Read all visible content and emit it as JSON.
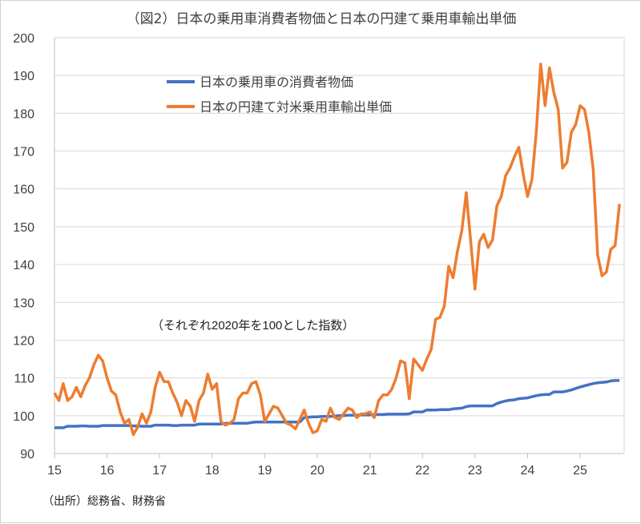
{
  "chart_data": {
    "type": "line",
    "title": "（図2）日本の乗用車消費者物価と日本の円建て乗用車輸出単価",
    "annotation": "（それぞれ2020年を100とした指数）",
    "source": "（出所）総務省、財務省",
    "xlabel": "",
    "ylabel": "",
    "ylim": [
      90,
      200
    ],
    "yticks": [
      90,
      100,
      110,
      120,
      130,
      140,
      150,
      160,
      170,
      180,
      190,
      200
    ],
    "xticks": [
      "15",
      "16",
      "17",
      "18",
      "19",
      "20",
      "21",
      "22",
      "23",
      "24",
      "25"
    ],
    "x_start": "2015-01",
    "x_end": "2025-10",
    "frequency": "monthly",
    "grid": true,
    "legend_placement": "top-left",
    "series": [
      {
        "name": "日本の乗用車の消費者物価",
        "color": "#4472C4",
        "values": [
          96.8,
          96.8,
          96.8,
          97.2,
          97.2,
          97.2,
          97.3,
          97.3,
          97.2,
          97.2,
          97.2,
          97.4,
          97.4,
          97.4,
          97.4,
          97.4,
          97.4,
          97.4,
          97.3,
          97.3,
          97.2,
          97.2,
          97.2,
          97.5,
          97.5,
          97.5,
          97.5,
          97.4,
          97.4,
          97.5,
          97.5,
          97.5,
          97.5,
          97.8,
          97.8,
          97.8,
          97.8,
          97.8,
          97.8,
          98.0,
          98.0,
          98.0,
          98.0,
          98.0,
          98.0,
          98.2,
          98.3,
          98.3,
          98.3,
          98.3,
          98.3,
          98.3,
          98.3,
          98.3,
          98.3,
          98.3,
          98.3,
          99.5,
          99.6,
          99.7,
          99.7,
          99.8,
          99.8,
          99.8,
          99.9,
          100.0,
          100.0,
          100.1,
          100.1,
          100.1,
          100.2,
          100.2,
          100.2,
          100.3,
          100.3,
          100.3,
          100.4,
          100.4,
          100.4,
          100.4,
          100.4,
          100.5,
          101.0,
          101.0,
          101.0,
          101.5,
          101.5,
          101.5,
          101.6,
          101.6,
          101.6,
          101.8,
          101.9,
          102.0,
          102.4,
          102.6,
          102.6,
          102.6,
          102.6,
          102.6,
          102.6,
          103.2,
          103.6,
          103.9,
          104.1,
          104.2,
          104.5,
          104.6,
          104.7,
          105.0,
          105.3,
          105.5,
          105.6,
          105.6,
          106.3,
          106.3,
          106.3,
          106.5,
          106.8,
          107.2,
          107.6,
          107.9,
          108.2,
          108.5,
          108.7,
          108.8,
          108.9,
          109.2,
          109.3,
          109.3
        ]
      },
      {
        "name": "日本の円建て対米乗用車輸出単価",
        "color": "#ED7D31",
        "values": [
          106,
          104,
          108.5,
          104,
          105,
          107.5,
          105,
          108,
          110,
          113.5,
          116,
          114.5,
          110,
          106.5,
          105.5,
          101,
          98,
          99,
          95,
          97,
          100.5,
          98,
          101,
          107.5,
          111.5,
          109,
          109,
          106,
          103.5,
          100,
          104,
          102.5,
          98.5,
          104,
          106,
          111,
          107,
          108.5,
          98.5,
          97.5,
          98,
          99,
          104.5,
          106,
          106,
          108.5,
          109,
          105.5,
          98.5,
          100.5,
          102.5,
          102,
          100,
          98,
          97.5,
          96.5,
          99,
          101.5,
          98,
          95.5,
          96,
          99,
          98.5,
          102,
          99.5,
          99,
          100.5,
          102,
          101.5,
          99.5,
          100.5,
          100.5,
          101,
          99.5,
          104,
          105.5,
          105.5,
          107,
          110,
          114.5,
          114,
          104.5,
          115,
          113.5,
          112,
          115,
          117.5,
          125.5,
          126,
          129,
          139.5,
          136.5,
          143.5,
          149,
          159,
          146.5,
          133.5,
          146,
          148,
          144.5,
          146.5,
          155.5,
          158,
          163.5,
          165.5,
          168.5,
          171,
          164,
          158,
          162.5,
          175,
          193,
          182,
          192,
          185.5,
          181,
          165.5,
          167,
          175,
          177,
          182,
          181,
          175,
          165,
          142.5,
          137,
          138,
          144,
          145,
          156
        ]
      }
    ]
  }
}
